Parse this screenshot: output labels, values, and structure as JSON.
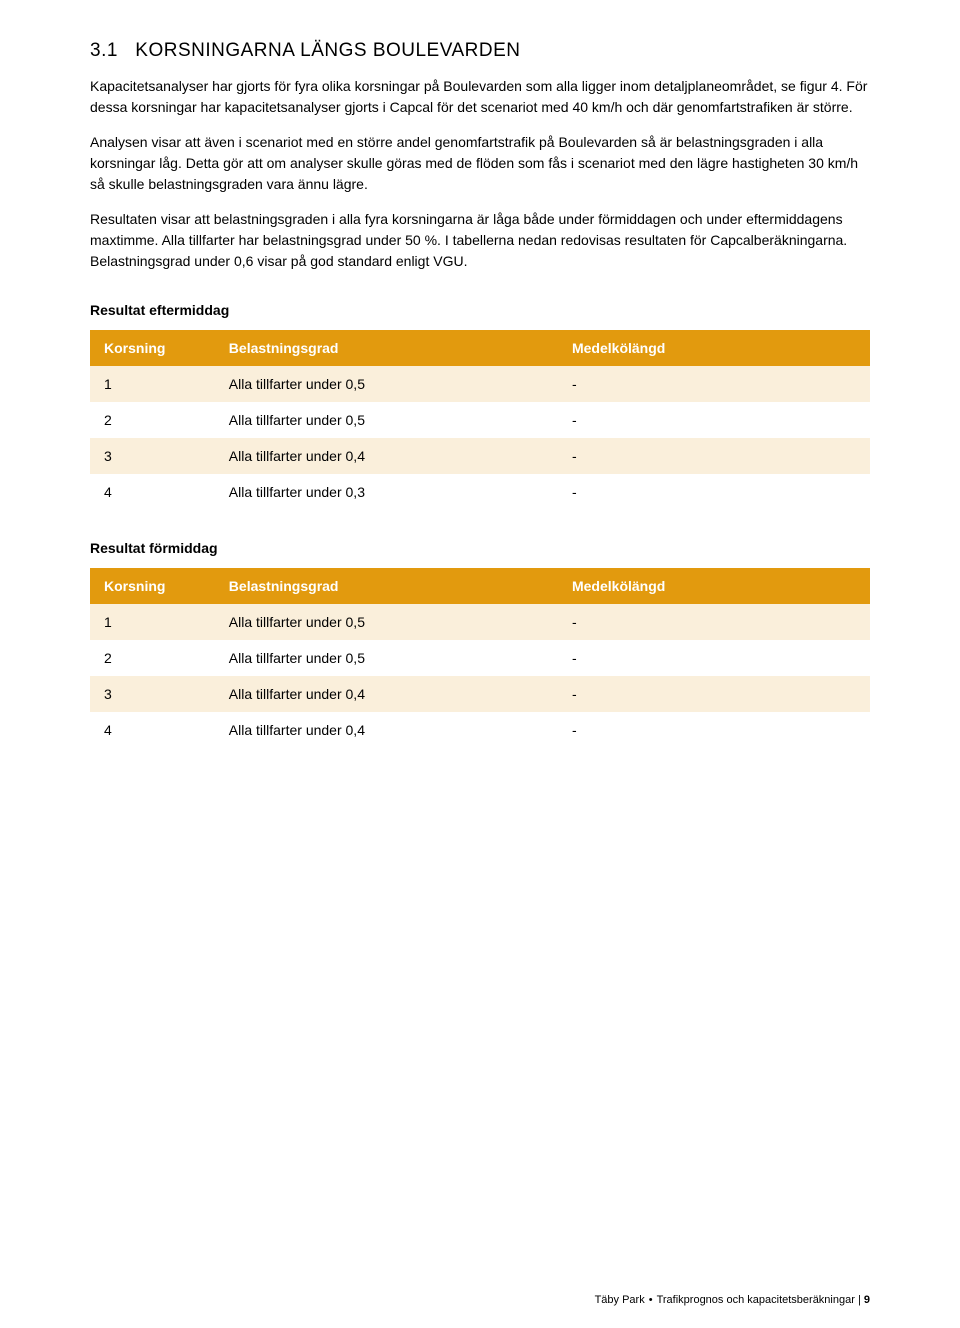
{
  "section": {
    "number": "3.1",
    "title": "KORSNINGARNA LÄNGS BOULEVARDEN"
  },
  "paragraphs": [
    "Kapacitetsanalyser har gjorts för fyra olika korsningar på Boulevarden som alla ligger inom detaljplaneområdet, se figur 4. För dessa korsningar har kapacitetsanalyser gjorts i Capcal för det scenariot med 40 km/h och där genomfartstrafiken är större.",
    "Analysen visar att även i scenariot med en större andel genomfartstrafik på Boulevarden så är belastningsgraden i alla korsningar låg. Detta gör att om analyser skulle göras med de flöden som fås i scenariot med den lägre hastigheten 30 km/h så skulle belastningsgraden vara ännu lägre.",
    "Resultaten visar att belastningsgraden i alla fyra korsningarna är låga både under förmiddagen och under eftermiddagens maxtimme. Alla tillfarter har belastningsgrad under 50 %. I tabellerna nedan redovisas resultaten för Capcalberäkningarna. Belastningsgrad under 0,6 visar på god standard enligt VGU."
  ],
  "table1": {
    "heading": "Resultat eftermiddag",
    "columns": [
      "Korsning",
      "Belastningsgrad",
      "Medelkölängd"
    ],
    "header_bg": "#e29a0e",
    "row_bg_odd": "#faefdb",
    "row_bg_even": "#ffffff",
    "rows": [
      [
        "1",
        "Alla tillfarter under 0,5",
        "-"
      ],
      [
        "2",
        "Alla tillfarter under 0,5",
        "-"
      ],
      [
        "3",
        "Alla tillfarter under 0,4",
        "-"
      ],
      [
        "4",
        "Alla tillfarter under 0,3",
        "-"
      ]
    ]
  },
  "table2": {
    "heading": "Resultat förmiddag",
    "columns": [
      "Korsning",
      "Belastningsgrad",
      "Medelkölängd"
    ],
    "header_bg": "#e29a0e",
    "row_bg_odd": "#faefdb",
    "row_bg_even": "#ffffff",
    "rows": [
      [
        "1",
        "Alla tillfarter under 0,5",
        "-"
      ],
      [
        "2",
        "Alla tillfarter under 0,5",
        "-"
      ],
      [
        "3",
        "Alla tillfarter under 0,4",
        "-"
      ],
      [
        "4",
        "Alla tillfarter under 0,4",
        "-"
      ]
    ]
  },
  "footer": {
    "left": "Täby Park",
    "right": "Trafikprognos och kapacitetsberäkningar",
    "page": "9"
  }
}
